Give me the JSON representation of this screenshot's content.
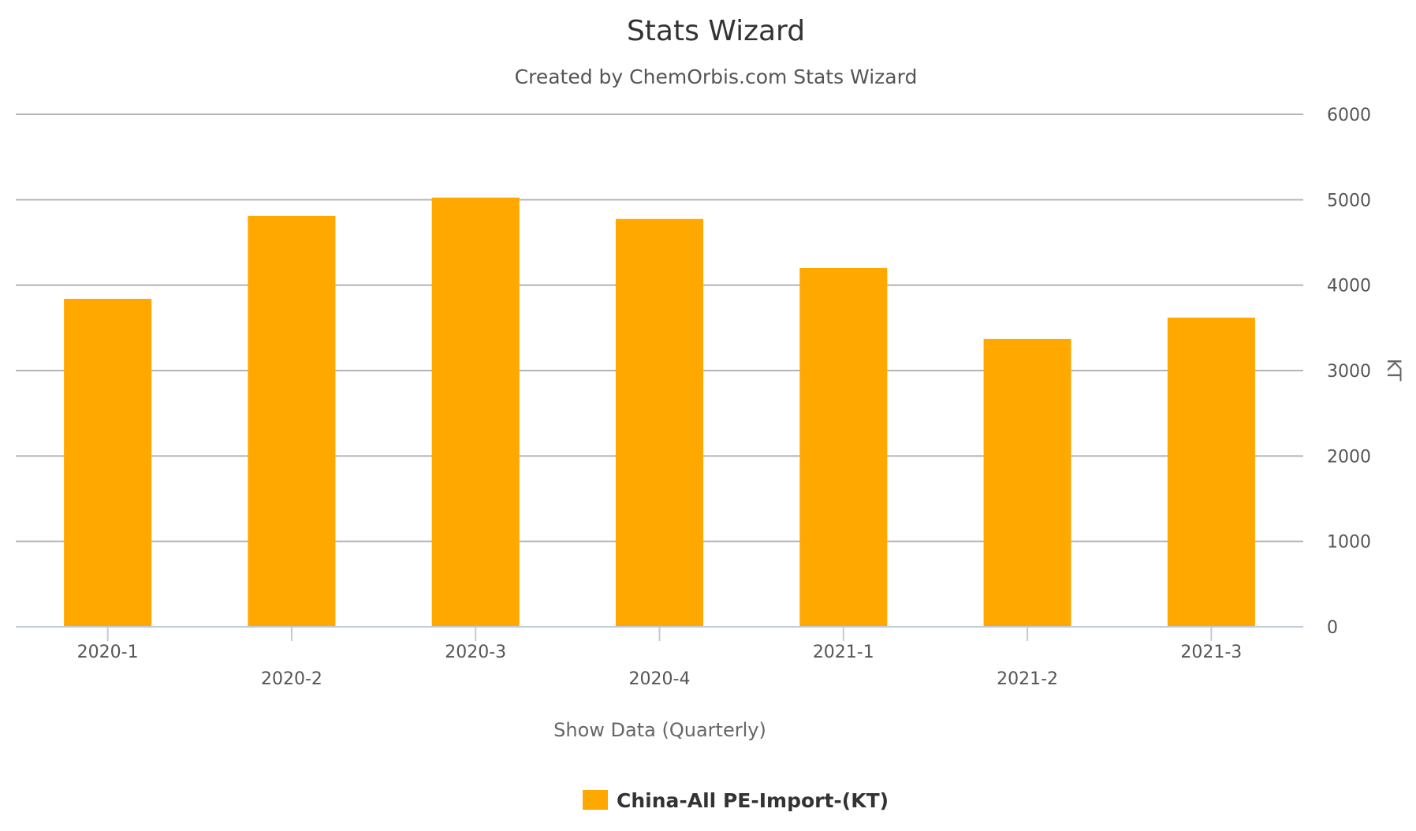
{
  "chart_data": {
    "type": "bar",
    "title": "Stats Wizard",
    "subtitle": "Created by ChemOrbis.com Stats Wizard",
    "xlabel": "Show Data (Quarterly)",
    "ylabel": "KT",
    "categories": [
      "2020-1",
      "2020-2",
      "2020-3",
      "2020-4",
      "2021-1",
      "2021-2",
      "2021-3"
    ],
    "series": [
      {
        "name": "China-All PE-Import-(KT)",
        "values": [
          3840,
          4810,
          5025,
          4775,
          4200,
          3370,
          3620
        ],
        "color": "#FFA800"
      }
    ],
    "ylim": [
      0,
      6000
    ],
    "yticks": [
      0,
      1000,
      2000,
      3000,
      4000,
      5000,
      6000
    ],
    "y_axis_position": "right",
    "grid": true,
    "legend": "bottom-center"
  }
}
